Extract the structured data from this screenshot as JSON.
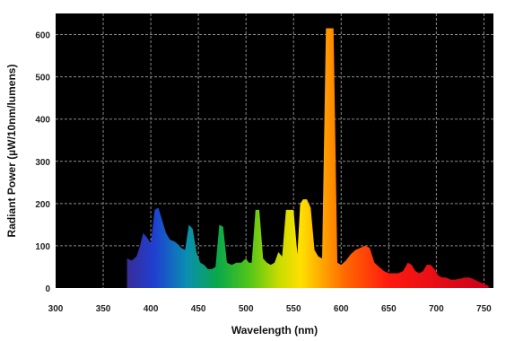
{
  "chart_data": {
    "type": "area",
    "title": "",
    "xlabel": "Wavelength (nm)",
    "ylabel": "Radiant Power (µW/10nm/lumens)",
    "xlim": [
      300,
      760
    ],
    "ylim": [
      0,
      650
    ],
    "x_ticks": [
      300,
      350,
      400,
      450,
      500,
      550,
      600,
      650,
      700,
      750
    ],
    "y_ticks": [
      0,
      100,
      200,
      300,
      400,
      500,
      600
    ],
    "grid": true,
    "legend": "none",
    "background_color": "#000000",
    "grid_color": "#8a8a8a",
    "series": [
      {
        "x": [
          375,
          380,
          385,
          388,
          392,
          396,
          400,
          404,
          408,
          412,
          416,
          420,
          425,
          428,
          432,
          436,
          440,
          444,
          448,
          452,
          456,
          460,
          464,
          468,
          472,
          476,
          480,
          485,
          490,
          495,
          500,
          503,
          506,
          510,
          514,
          518,
          522,
          526,
          530,
          534,
          538,
          542,
          546,
          550,
          554,
          557,
          560,
          564,
          568,
          572,
          576,
          580,
          584,
          588,
          592,
          596,
          600,
          605,
          610,
          615,
          620,
          625,
          630,
          635,
          640,
          645,
          650,
          655,
          660,
          665,
          670,
          674,
          678,
          682,
          686,
          690,
          694,
          698,
          702,
          706,
          710,
          715,
          720,
          725,
          730,
          735,
          740,
          745,
          750,
          755
        ],
        "y": [
          70,
          65,
          75,
          95,
          130,
          120,
          105,
          185,
          190,
          160,
          130,
          115,
          110,
          105,
          95,
          90,
          150,
          140,
          85,
          60,
          55,
          45,
          45,
          50,
          150,
          145,
          60,
          55,
          60,
          60,
          70,
          60,
          60,
          185,
          185,
          70,
          60,
          55,
          60,
          85,
          75,
          185,
          185,
          185,
          80,
          200,
          210,
          210,
          190,
          90,
          75,
          70,
          615,
          615,
          615,
          60,
          55,
          65,
          80,
          90,
          95,
          100,
          95,
          60,
          50,
          40,
          35,
          35,
          35,
          40,
          60,
          55,
          40,
          35,
          40,
          55,
          55,
          45,
          30,
          25,
          25,
          20,
          20,
          22,
          25,
          25,
          20,
          15,
          10,
          5
        ]
      }
    ]
  }
}
